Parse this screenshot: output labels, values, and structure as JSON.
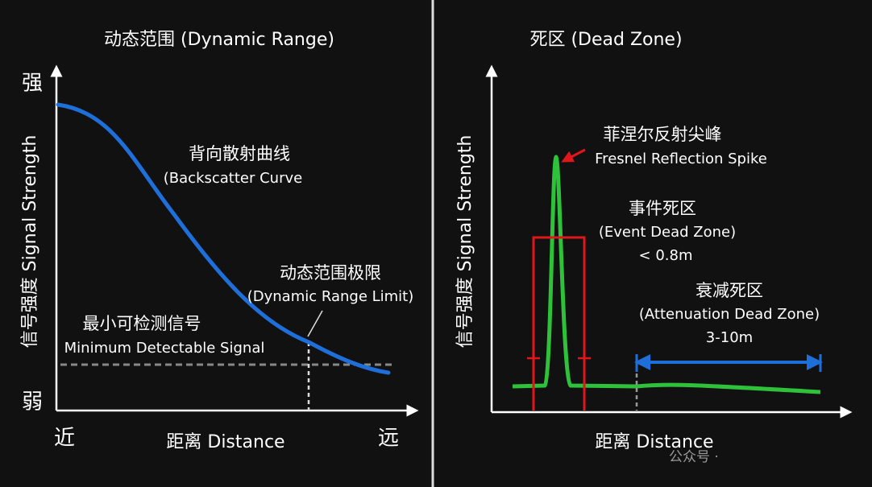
{
  "left": {
    "title": "动态范围 (Dynamic Range)",
    "y_axis": {
      "label": "信号强度 Signal Strength",
      "top": "强",
      "bottom": "弱"
    },
    "x_axis": {
      "label": "距离 Distance",
      "start": "近",
      "end": "远"
    },
    "annotations": {
      "backscatter": {
        "zh": "背向散射曲线",
        "en": "(Backscatter Curve"
      },
      "limit": {
        "zh": "动态范围极限",
        "en": "(Dynamic Range Limit)"
      },
      "minimum": {
        "zh": "最小可检测信号",
        "en": "Minimum Detectable Signal"
      }
    }
  },
  "right": {
    "title": "死区 (Dead Zone)",
    "y_axis": {
      "label": "信号强度 Signal Strength"
    },
    "x_axis": {
      "label": "距离 Distance"
    },
    "annotations": {
      "fresnel": {
        "zh": "菲涅尔反射尖峰",
        "en": "Fresnel Reflection Spike"
      },
      "event": {
        "zh": "事件死区",
        "en": "(Event Dead Zone)",
        "value": "< 0.8m"
      },
      "attenuation": {
        "zh": "衰减死区",
        "en": "(Attenuation Dead Zone)",
        "value": "3-10m"
      }
    }
  },
  "watermark": "公众号 ·"
}
